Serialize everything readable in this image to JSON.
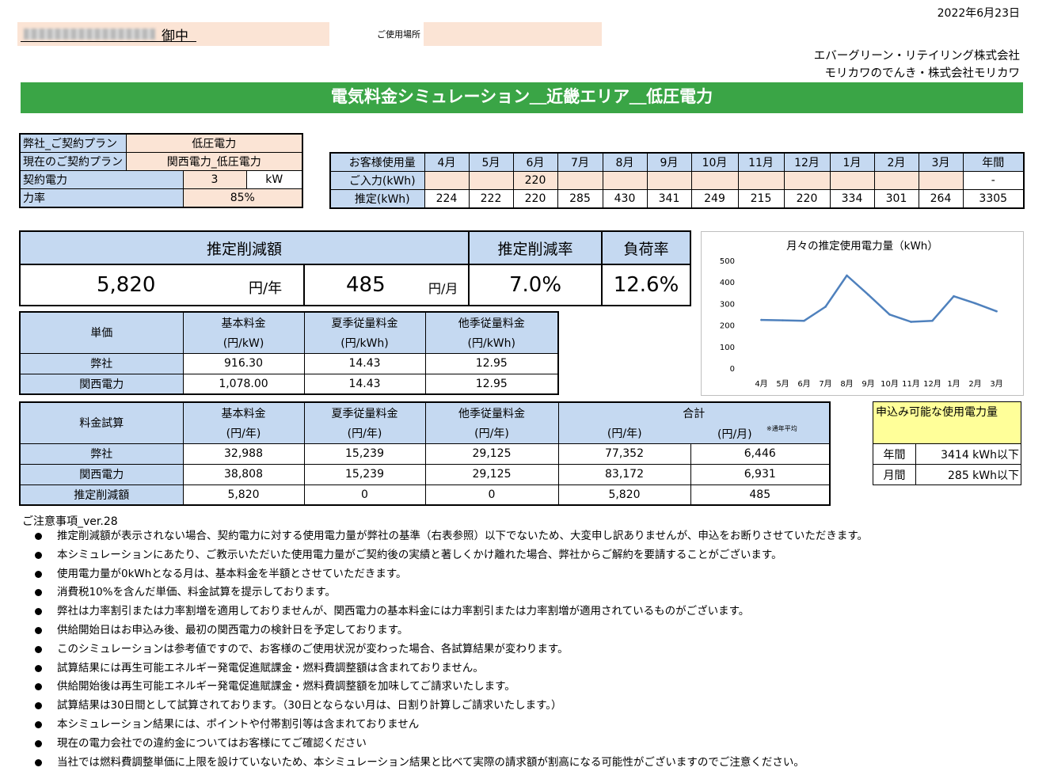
{
  "header": {
    "date": "2022年6月23日",
    "customer_suffix": "御中",
    "usage_place_label": "ご使用場所",
    "company_1": "エバーグリーン・リテイリング株式会社",
    "company_2": "モリカワのでんき・株式会社モリカワ",
    "banner_title": "電気料金シミュレーション＿近畿エリア＿低圧電力"
  },
  "plan": {
    "our_plan_label": "弊社_ご契約プラン",
    "our_plan_value": "低圧電力",
    "current_plan_label": "現在のご契約プラン",
    "current_plan_value": "関西電力_低圧電力",
    "contract_power_label": "契約電力",
    "contract_power_value": "3",
    "contract_power_unit": "kW",
    "power_factor_label": "力率",
    "power_factor_value": "85%"
  },
  "usage": {
    "header_label": "お客様使用量",
    "months": [
      "4月",
      "5月",
      "6月",
      "7月",
      "8月",
      "9月",
      "10月",
      "11月",
      "12月",
      "1月",
      "2月",
      "3月",
      "年間"
    ],
    "input_label": "ご入力(kWh)",
    "input_values": [
      "",
      "",
      "220",
      "",
      "",
      "",
      "",
      "",
      "",
      "",
      "",
      "",
      "-"
    ],
    "est_label": "推定(kWh)",
    "est_values": [
      "224",
      "222",
      "220",
      "285",
      "430",
      "341",
      "249",
      "215",
      "220",
      "334",
      "301",
      "264",
      "3305"
    ]
  },
  "summary": {
    "reduction_label": "推定削減額",
    "rate_label": "推定削減率",
    "load_label": "負荷率",
    "annual_value": "5,820",
    "annual_unit": "円/年",
    "monthly_value": "485",
    "monthly_unit": "円/月",
    "rate_value": "7.0%",
    "load_value": "12.6%"
  },
  "unit_price": {
    "title": "単価",
    "cols": [
      "基本料金",
      "夏季従量料金",
      "他季従量料金"
    ],
    "units": [
      "(円/kW)",
      "(円/kWh)",
      "(円/kWh)"
    ],
    "rows": [
      {
        "name": "弊社",
        "values": [
          "916.30",
          "14.43",
          "12.95"
        ]
      },
      {
        "name": "関西電力",
        "values": [
          "1,078.00",
          "14.43",
          "12.95"
        ]
      }
    ]
  },
  "fee": {
    "title": "料金試算",
    "cols": [
      "基本料金",
      "夏季従量料金",
      "他季従量料金",
      "合計"
    ],
    "units": [
      "(円/年)",
      "(円/年)",
      "(円/年)",
      "(円/年)",
      "(円/月)"
    ],
    "note": "※通年平均",
    "rows": [
      {
        "name": "弊社",
        "values": [
          "32,988",
          "15,239",
          "29,125",
          "77,352",
          "6,446"
        ]
      },
      {
        "name": "関西電力",
        "values": [
          "38,808",
          "15,239",
          "29,125",
          "83,172",
          "6,931"
        ]
      },
      {
        "name": "推定削減額",
        "values": [
          "5,820",
          "0",
          "0",
          "5,820",
          "485"
        ]
      }
    ]
  },
  "available": {
    "title": "申込み可能な使用電力量",
    "year_label": "年間",
    "year_value": "3414 kWh以下",
    "month_label": "月間",
    "month_value": "285 kWh以下"
  },
  "chart_data": {
    "type": "line",
    "title": "月々の推定使用電力量（kWh）",
    "categories": [
      "4月",
      "5月",
      "6月",
      "7月",
      "8月",
      "9月",
      "10月",
      "11月",
      "12月",
      "1月",
      "2月",
      "3月"
    ],
    "values": [
      224,
      222,
      220,
      285,
      430,
      341,
      249,
      215,
      220,
      334,
      301,
      264
    ],
    "ylim": [
      0,
      500
    ],
    "yticks": [
      0,
      100,
      200,
      300,
      400,
      500
    ],
    "color": "#4f81bd",
    "grid": false
  },
  "notes": {
    "title": "ご注意事項_ver.28",
    "items": [
      "推定削減額が表示されない場合、契約電力に対する使用電力量が弊社の基準（右表参照）以下でないため、大変申し訳ありませんが、申込をお断りさせていただきます。",
      "本シミュレーションにあたり、ご教示いただいた使用電力量がご契約後の実績と著しくかけ離れた場合、弊社からご解約を要請することがございます。",
      "使用電力量が0kWhとなる月は、基本料金を半額とさせていただきます。",
      "消費税10%を含んだ単価、料金試算を提示しております。",
      "弊社は力率割引または力率割増を適用しておりませんが、関西電力の基本料金には力率割引または力率割増が適用されているものがございます。",
      "供給開始日はお申込み後、最初の関西電力の検針日を予定しております。",
      "このシミュレーションは参考値ですので、お客様のご使用状況が変わった場合、各試算結果が変わります。",
      "試算結果には再生可能エネルギー発電促進賦課金・燃料費調整額は含まれておりません。",
      "供給開始後は再生可能エネルギー発電促進賦課金・燃料費調整額を加味してご請求いたします。",
      "試算結果は30日間として試算されております。（30日とならない月は、日割り計算しご請求いたします。）",
      "本シミュレーション結果には、ポイントや付帯割引等は含まれておりません",
      "現在の電力会社での違約金についてはお客様にてご確認ください",
      "当社では燃料費調整単価に上限を設けていないため、本シミュレーション結果と比べて実際の請求額が割高になる可能性がございますのでご注意ください。"
    ]
  }
}
